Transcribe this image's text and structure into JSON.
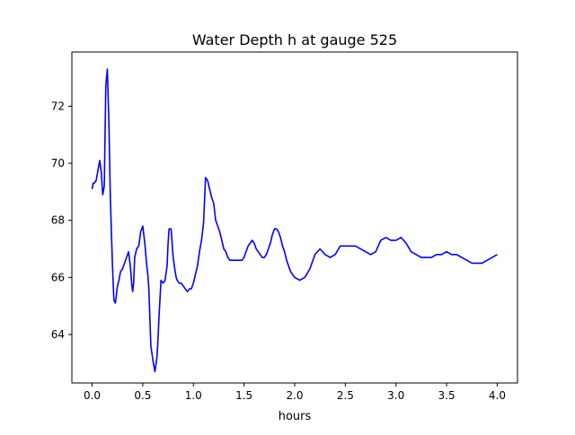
{
  "chart_data": {
    "type": "line",
    "title": "Water Depth h at gauge 525",
    "xlabel": "hours",
    "ylabel": "",
    "xlim": [
      -0.2,
      4.2
    ],
    "ylim": [
      62.3,
      73.9
    ],
    "xticks": [
      0.0,
      0.5,
      1.0,
      1.5,
      2.0,
      2.5,
      3.0,
      3.5,
      4.0
    ],
    "xtick_labels": [
      "0.0",
      "0.5",
      "1.0",
      "1.5",
      "2.0",
      "2.5",
      "3.0",
      "3.5",
      "4.0"
    ],
    "yticks": [
      64,
      66,
      68,
      70,
      72
    ],
    "ytick_labels": [
      "64",
      "66",
      "68",
      "70",
      "72"
    ],
    "grid": false,
    "legend": "none",
    "series": [
      {
        "color": "#0000ff",
        "x": [
          0.0,
          0.01,
          0.02,
          0.04,
          0.06,
          0.075,
          0.09,
          0.105,
          0.12,
          0.135,
          0.15,
          0.165,
          0.18,
          0.2,
          0.215,
          0.23,
          0.25,
          0.265,
          0.28,
          0.3,
          0.33,
          0.36,
          0.38,
          0.39,
          0.4,
          0.41,
          0.42,
          0.44,
          0.46,
          0.48,
          0.5,
          0.52,
          0.54,
          0.55,
          0.56,
          0.58,
          0.6,
          0.62,
          0.64,
          0.65,
          0.66,
          0.68,
          0.7,
          0.72,
          0.74,
          0.75,
          0.76,
          0.78,
          0.8,
          0.82,
          0.83,
          0.84,
          0.86,
          0.88,
          0.9,
          0.92,
          0.94,
          0.96,
          0.98,
          1.0,
          1.02,
          1.04,
          1.06,
          1.08,
          1.1,
          1.12,
          1.14,
          1.16,
          1.18,
          1.2,
          1.22,
          1.24,
          1.26,
          1.28,
          1.3,
          1.32,
          1.34,
          1.36,
          1.38,
          1.4,
          1.42,
          1.44,
          1.46,
          1.48,
          1.5,
          1.52,
          1.54,
          1.56,
          1.58,
          1.6,
          1.62,
          1.64,
          1.66,
          1.68,
          1.7,
          1.72,
          1.74,
          1.76,
          1.78,
          1.8,
          1.82,
          1.84,
          1.86,
          1.88,
          1.9,
          1.92,
          1.94,
          1.96,
          1.98,
          2.0,
          2.05,
          2.1,
          2.15,
          2.2,
          2.25,
          2.3,
          2.35,
          2.4,
          2.45,
          2.5,
          2.55,
          2.6,
          2.65,
          2.7,
          2.75,
          2.8,
          2.85,
          2.9,
          2.95,
          3.0,
          3.05,
          3.1,
          3.15,
          3.2,
          3.25,
          3.3,
          3.35,
          3.4,
          3.45,
          3.5,
          3.55,
          3.6,
          3.65,
          3.7,
          3.75,
          3.8,
          3.85,
          3.9,
          3.95,
          4.0
        ],
        "values": [
          69.1,
          69.3,
          69.3,
          69.4,
          69.8,
          70.1,
          69.7,
          68.9,
          69.2,
          72.7,
          73.3,
          71.5,
          68.8,
          66.5,
          65.2,
          65.1,
          65.7,
          65.9,
          66.2,
          66.3,
          66.6,
          66.9,
          66.3,
          65.8,
          65.5,
          65.8,
          66.7,
          67.0,
          67.1,
          67.6,
          67.8,
          67.2,
          66.4,
          66.1,
          65.6,
          63.6,
          63.1,
          62.7,
          63.2,
          63.8,
          64.6,
          65.9,
          65.8,
          65.9,
          66.4,
          67.2,
          67.7,
          67.7,
          66.7,
          66.2,
          66.0,
          65.9,
          65.8,
          65.8,
          65.7,
          65.6,
          65.5,
          65.6,
          65.6,
          65.8,
          66.1,
          66.4,
          66.9,
          67.3,
          67.9,
          69.5,
          69.4,
          69.1,
          68.8,
          68.6,
          68.0,
          67.8,
          67.6,
          67.3,
          67.0,
          66.9,
          66.7,
          66.6,
          66.6,
          66.6,
          66.6,
          66.6,
          66.6,
          66.6,
          66.7,
          66.9,
          67.1,
          67.2,
          67.3,
          67.2,
          67.0,
          66.9,
          66.8,
          66.7,
          66.7,
          66.8,
          67.0,
          67.2,
          67.5,
          67.7,
          67.7,
          67.6,
          67.4,
          67.1,
          66.9,
          66.6,
          66.4,
          66.2,
          66.1,
          66.0,
          65.9,
          66.0,
          66.3,
          66.8,
          67.0,
          66.8,
          66.7,
          66.8,
          67.1,
          67.1,
          67.1,
          67.1,
          67.0,
          66.9,
          66.8,
          66.9,
          67.3,
          67.4,
          67.3,
          67.3,
          67.4,
          67.2,
          66.9,
          66.8,
          66.7,
          66.7,
          66.7,
          66.8,
          66.8,
          66.9,
          66.8,
          66.8,
          66.7,
          66.6,
          66.5,
          66.5,
          66.5,
          66.6,
          66.7,
          66.8
        ]
      }
    ]
  }
}
